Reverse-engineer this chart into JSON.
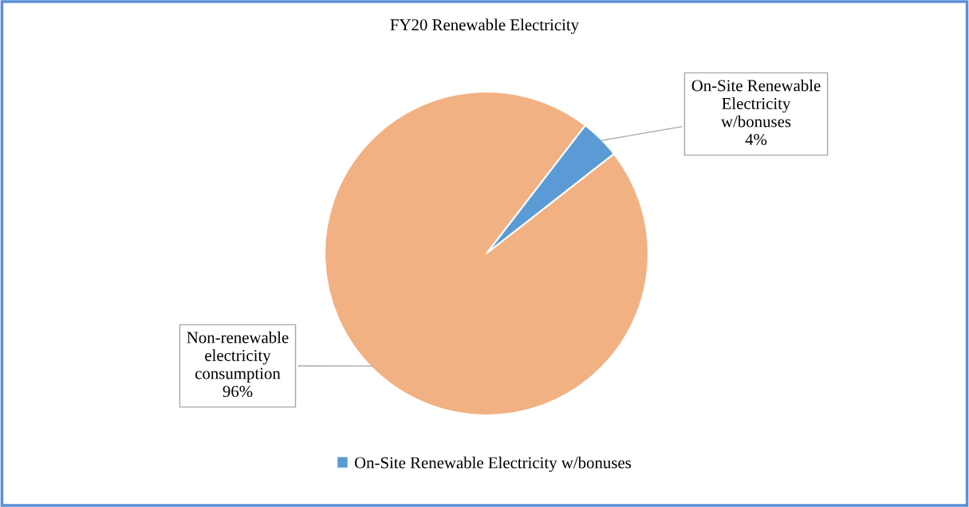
{
  "chart_data": {
    "type": "pie",
    "title": "FY20 Renewable Electricity",
    "categories": [
      "On-Site Renewable Electricity w/bonuses",
      "Non-renewable electricity consumption"
    ],
    "values": [
      4,
      96
    ],
    "colors": [
      "#5b9bd5",
      "#f1b183"
    ],
    "value_labels": [
      "4%",
      "96%"
    ],
    "legend": "bottom"
  }
}
